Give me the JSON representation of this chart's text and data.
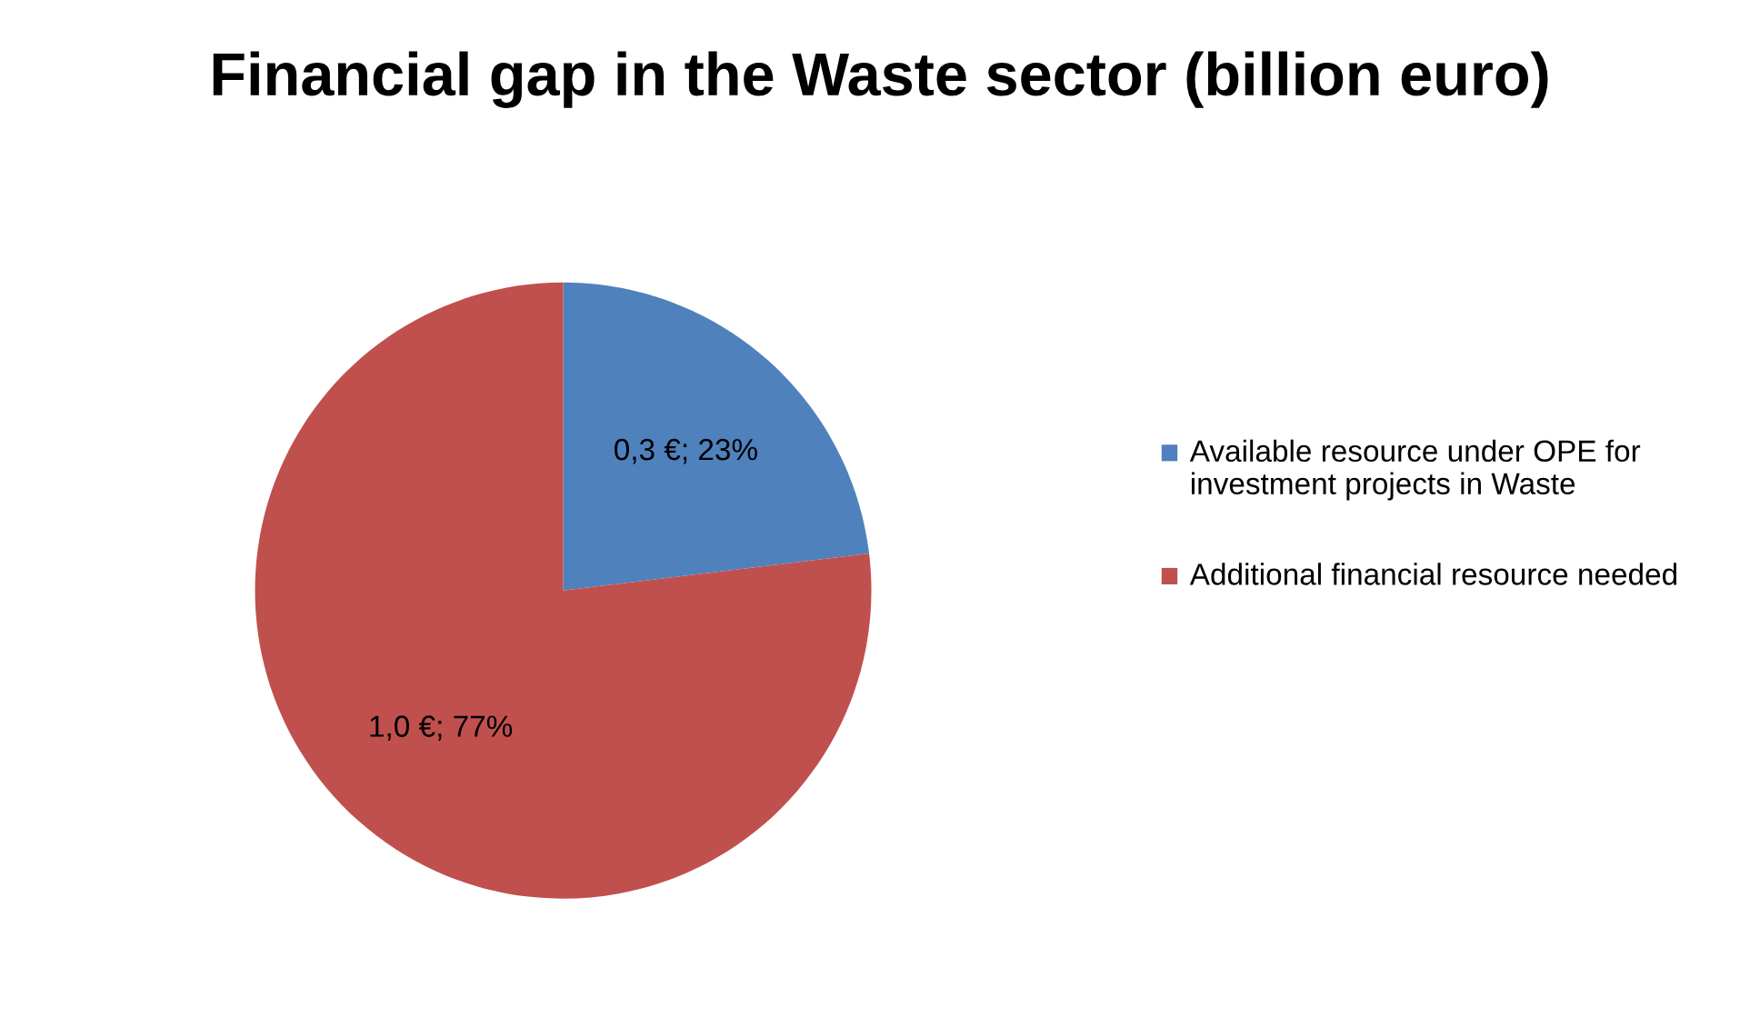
{
  "chart_data": {
    "type": "pie",
    "title": "Financial gap in the Waste sector (billion euro)",
    "categories": [
      "Available resource under OPE for investment projects in Waste",
      "Additional financial resource needed"
    ],
    "values": [
      0.3,
      1.0
    ],
    "value_labels": [
      "0,3 €; 23%",
      "1,0 €; 77%"
    ],
    "colors": [
      "#4f81bd",
      "#c0504d"
    ],
    "legend": "right"
  }
}
